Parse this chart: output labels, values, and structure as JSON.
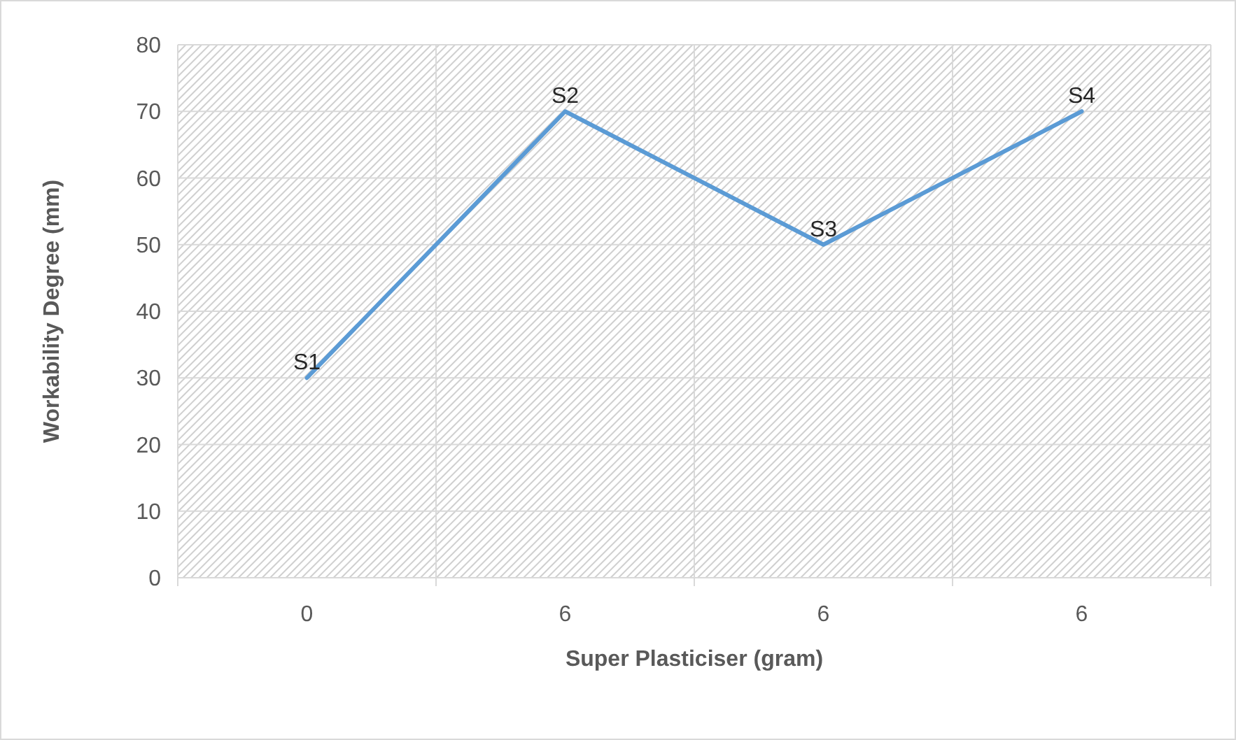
{
  "chart_data": {
    "type": "line",
    "xlabel": "Super Plasticiser (gram)",
    "ylabel": "Workability Degree (mm)",
    "categories": [
      "0",
      "6",
      "6",
      "6"
    ],
    "series": [
      {
        "color": "#5b9bd5",
        "values": [
          30,
          70,
          50,
          70
        ],
        "value_labels": [
          "S1",
          "S2",
          "S3",
          "S4"
        ]
      }
    ],
    "ylim": [
      0,
      80
    ],
    "yticks": [
      0,
      10,
      20,
      30,
      40,
      50,
      60,
      70,
      80
    ],
    "grid": true,
    "marker": "none",
    "line_style": "solid"
  }
}
